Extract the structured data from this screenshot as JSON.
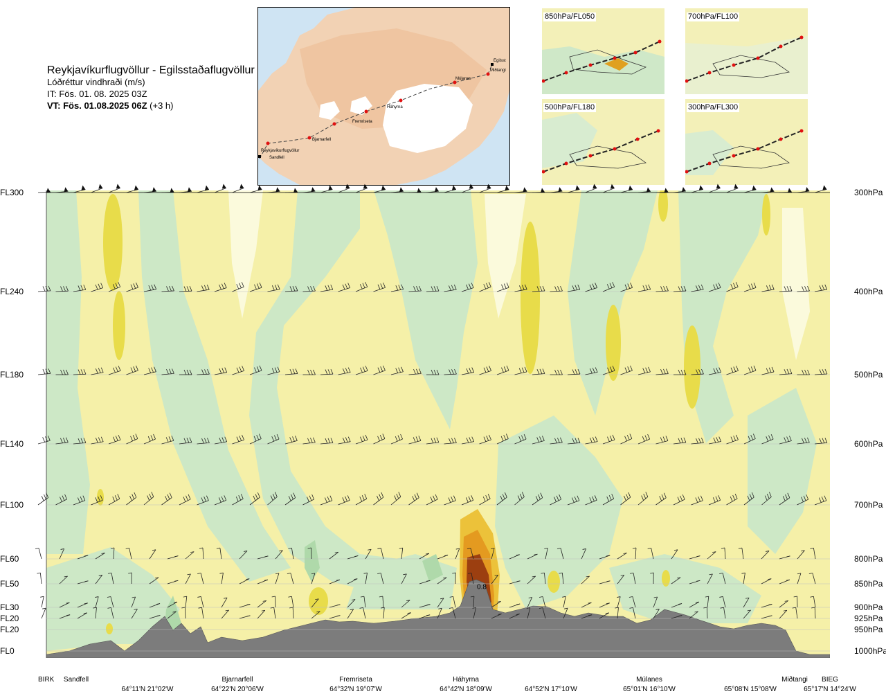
{
  "title": {
    "route": "Reykjavíkurflugvöllur - Egilsstaðaflugvöllur",
    "variable": "Lóðréttur vindhraði (m/s)",
    "issue_time": "IT: Fös. 01. 08. 2025 03Z",
    "valid_time": "VT: Fös. 01.08.2025 06Z",
    "valid_offset": "(+3 h)"
  },
  "map": {
    "route_points": [
      "Reykjavíkurflugvöllur",
      "Sandfell",
      "Bjarnarfell",
      "Fremriseta",
      "Háhyrna",
      "Múlanes",
      "Miðtangi",
      "Egilsst"
    ]
  },
  "panels": [
    {
      "label": "850hPa/FL050"
    },
    {
      "label": "700hPa/FL100"
    },
    {
      "label": "500hPa/FL180"
    },
    {
      "label": "300hPa/FL300"
    }
  ],
  "chart_data": {
    "type": "heatmap",
    "title": "Lóðréttur vindhraði (m/s)",
    "y_left_labels": [
      {
        "label": "FL300",
        "pressure": 300
      },
      {
        "label": "FL240",
        "pressure": 400
      },
      {
        "label": "FL180",
        "pressure": 500
      },
      {
        "label": "FL140",
        "pressure": 600
      },
      {
        "label": "FL100",
        "pressure": 700
      },
      {
        "label": "FL60",
        "pressure": 800
      },
      {
        "label": "FL50",
        "pressure": 850
      },
      {
        "label": "FL30",
        "pressure": 900
      },
      {
        "label": "FL20",
        "pressure": 925
      },
      {
        "label": "FL20",
        "pressure": 950
      },
      {
        "label": "FL0",
        "pressure": 1000
      }
    ],
    "y_right_labels": [
      "300hPa",
      "400hPa",
      "500hPa",
      "600hPa",
      "700hPa",
      "800hPa",
      "850hPa",
      "900hPa",
      "925hPa",
      "950hPa",
      "1000hPa"
    ],
    "pressure_range": [
      300,
      1000
    ],
    "x_points": [
      {
        "name": "BIRK",
        "coord": ""
      },
      {
        "name": "Sandfell",
        "coord": ""
      },
      {
        "name": "",
        "coord": "64°11'N 21°02'W"
      },
      {
        "name": "Bjarnarfell",
        "coord": "64°22'N 20°06'W"
      },
      {
        "name": "Fremriseta",
        "coord": "64°32'N 19°07'W"
      },
      {
        "name": "Háhyrna",
        "coord": "64°42'N 18°09'W"
      },
      {
        "name": "",
        "coord": "64°52'N 17°10'W"
      },
      {
        "name": "Múlanes",
        "coord": "65°01'N 16°10'W"
      },
      {
        "name": "",
        "coord": "65°08'N 15°08'W"
      },
      {
        "name": "Miðtangi",
        "coord": ""
      },
      {
        "name": "BIEG",
        "coord": "65°17'N 14°24'W"
      }
    ],
    "annotations": [
      "0.8"
    ],
    "max_annotation": {
      "label": "0.8",
      "pressure": 855
    },
    "colors": {
      "strong_down": "#9fcf9f",
      "down": "#c3e3c0",
      "weak_down": "#e3f2df",
      "neutral": "#fdfde8",
      "weak_up": "#f5f0a8",
      "up": "#efe48a",
      "strong_up": "#e8d640",
      "very_strong_up": "#e5a020",
      "extreme_up": "#a0420e",
      "terrain": "#7c7c7c"
    }
  }
}
